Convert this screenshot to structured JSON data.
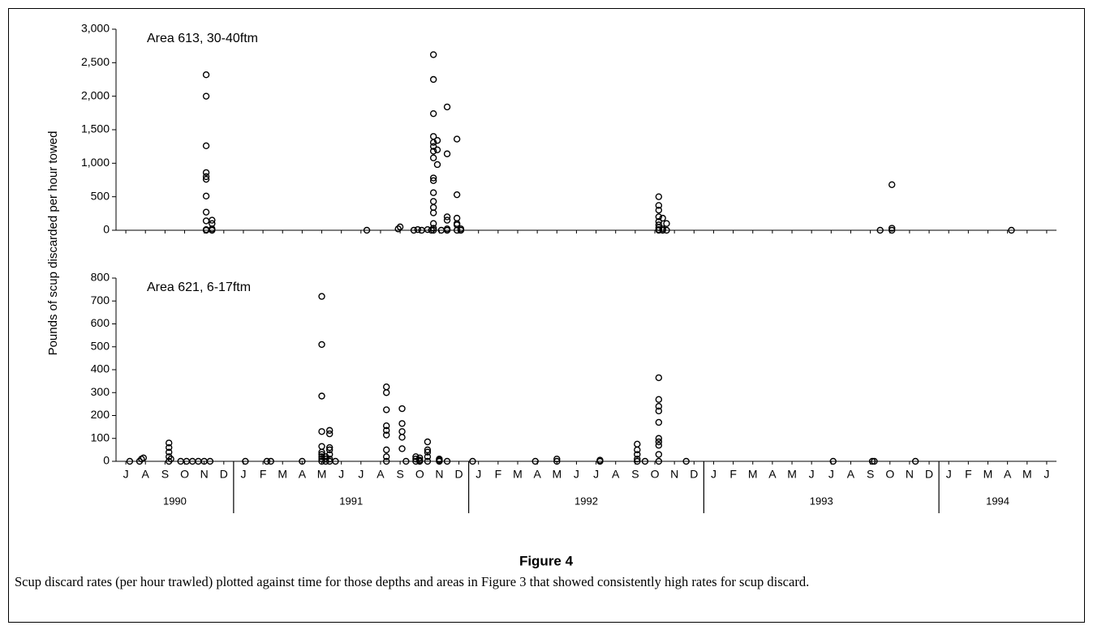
{
  "y_label": "Pounds of scup discarded per hour towed",
  "chart_data": [
    {
      "type": "scatter",
      "annotation": "Area 613, 30-40ftm",
      "xlim": [
        0,
        48
      ],
      "ylim": [
        0,
        3000
      ],
      "yticks": [
        0,
        500,
        {
          "value": 1000,
          "label": "1,000"
        },
        {
          "value": 1500,
          "label": "1,500"
        },
        {
          "value": 2000,
          "label": "2,000"
        },
        {
          "value": 2500,
          "label": "2,500"
        },
        {
          "value": 3000,
          "label": "3,000"
        }
      ],
      "series": [
        {
          "color": "#000000",
          "x": [
            4.6,
            4.6,
            4.6,
            4.6,
            4.6,
            4.6,
            4.6,
            4.6,
            4.6,
            4.6,
            4.6,
            4.9,
            4.9,
            4.9,
            4.9,
            12.8,
            14.4,
            14.5,
            15.2,
            15.4,
            15.6,
            15.9,
            16.1,
            16.2,
            16.2,
            16.2,
            16.2,
            16.2,
            16.2,
            16.2,
            16.2,
            16.2,
            16.2,
            16.2,
            16.2,
            16.2,
            16.2,
            16.2,
            16.2,
            16.2,
            16.4,
            16.4,
            16.4,
            16.6,
            16.9,
            16.9,
            16.9,
            16.9,
            16.9,
            16.9,
            17.4,
            17.4,
            17.4,
            17.4,
            17.4,
            17.4,
            17.6,
            17.6,
            27.7,
            27.7,
            27.7,
            27.7,
            27.7,
            27.7,
            27.7,
            27.7,
            27.7,
            27.9,
            27.9,
            27.9,
            28.1,
            28.1,
            39.0,
            39.6,
            39.6,
            39.6,
            45.7
          ],
          "values": [
            2320,
            2000,
            1260,
            860,
            800,
            760,
            510,
            270,
            140,
            10,
            0,
            150,
            100,
            20,
            0,
            0,
            20,
            50,
            0,
            10,
            0,
            10,
            0,
            2620,
            2250,
            1740,
            1400,
            1310,
            1250,
            1180,
            1080,
            780,
            740,
            560,
            430,
            340,
            260,
            100,
            30,
            0,
            1340,
            1200,
            980,
            0,
            1840,
            1140,
            200,
            150,
            20,
            0,
            1360,
            530,
            180,
            100,
            80,
            0,
            20,
            0,
            500,
            370,
            300,
            200,
            130,
            80,
            40,
            10,
            0,
            180,
            20,
            0,
            100,
            0,
            0,
            680,
            30,
            0,
            0
          ]
        }
      ]
    },
    {
      "type": "scatter",
      "annotation": "Area 621, 6-17ftm",
      "xlim": [
        0,
        48
      ],
      "ylim": [
        0,
        800
      ],
      "yticks": [
        0,
        100,
        200,
        300,
        400,
        500,
        600,
        700,
        800
      ],
      "xticks": [
        {
          "value": 0.5,
          "label": "J"
        },
        {
          "value": 1.5,
          "label": "A"
        },
        {
          "value": 2.5,
          "label": "S"
        },
        {
          "value": 3.5,
          "label": "O"
        },
        {
          "value": 4.5,
          "label": "N"
        },
        {
          "value": 5.5,
          "label": "D"
        },
        {
          "value": 6.5,
          "label": "J"
        },
        {
          "value": 7.5,
          "label": "F"
        },
        {
          "value": 8.5,
          "label": "M"
        },
        {
          "value": 9.5,
          "label": "A"
        },
        {
          "value": 10.5,
          "label": "M"
        },
        {
          "value": 11.5,
          "label": "J"
        },
        {
          "value": 12.5,
          "label": "J"
        },
        {
          "value": 13.5,
          "label": "A"
        },
        {
          "value": 14.5,
          "label": "S"
        },
        {
          "value": 15.5,
          "label": "O"
        },
        {
          "value": 16.5,
          "label": "N"
        },
        {
          "value": 17.5,
          "label": "D"
        },
        {
          "value": 18.5,
          "label": "J"
        },
        {
          "value": 19.5,
          "label": "F"
        },
        {
          "value": 20.5,
          "label": "M"
        },
        {
          "value": 21.5,
          "label": "A"
        },
        {
          "value": 22.5,
          "label": "M"
        },
        {
          "value": 23.5,
          "label": "J"
        },
        {
          "value": 24.5,
          "label": "J"
        },
        {
          "value": 25.5,
          "label": "A"
        },
        {
          "value": 26.5,
          "label": "S"
        },
        {
          "value": 27.5,
          "label": "O"
        },
        {
          "value": 28.5,
          "label": "N"
        },
        {
          "value": 29.5,
          "label": "D"
        },
        {
          "value": 30.5,
          "label": "J"
        },
        {
          "value": 31.5,
          "label": "F"
        },
        {
          "value": 32.5,
          "label": "M"
        },
        {
          "value": 33.5,
          "label": "A"
        },
        {
          "value": 34.5,
          "label": "M"
        },
        {
          "value": 35.5,
          "label": "J"
        },
        {
          "value": 36.5,
          "label": "J"
        },
        {
          "value": 37.5,
          "label": "A"
        },
        {
          "value": 38.5,
          "label": "S"
        },
        {
          "value": 39.5,
          "label": "O"
        },
        {
          "value": 40.5,
          "label": "N"
        },
        {
          "value": 41.5,
          "label": "D"
        },
        {
          "value": 42.5,
          "label": "J"
        },
        {
          "value": 43.5,
          "label": "F"
        },
        {
          "value": 44.5,
          "label": "M"
        },
        {
          "value": 45.5,
          "label": "A"
        },
        {
          "value": 46.5,
          "label": "M"
        },
        {
          "value": 47.5,
          "label": "J"
        }
      ],
      "year_ticks": [
        {
          "value": 3,
          "label": "1990"
        },
        {
          "value": 12,
          "label": "1991"
        },
        {
          "value": 24,
          "label": "1992"
        },
        {
          "value": 36,
          "label": "1993"
        },
        {
          "value": 45,
          "label": "1994"
        }
      ],
      "series": [
        {
          "color": "#000000",
          "x": [
            0.7,
            1.2,
            1.3,
            1.4,
            2.7,
            2.7,
            2.7,
            2.7,
            2.7,
            2.8,
            3.3,
            3.6,
            3.9,
            4.2,
            4.5,
            4.8,
            6.6,
            7.7,
            7.9,
            9.5,
            10.5,
            10.5,
            10.5,
            10.5,
            10.5,
            10.5,
            10.5,
            10.5,
            10.5,
            10.5,
            10.7,
            10.7,
            10.7,
            10.9,
            10.9,
            10.9,
            10.9,
            10.9,
            10.9,
            10.9,
            11.2,
            13.8,
            13.8,
            13.8,
            13.8,
            13.8,
            13.8,
            13.8,
            13.8,
            13.8,
            14.6,
            14.6,
            14.6,
            14.6,
            14.6,
            14.8,
            15.3,
            15.3,
            15.3,
            15.5,
            15.5,
            15.5,
            15.9,
            15.9,
            15.9,
            15.9,
            15.9,
            16.5,
            16.5,
            16.5,
            16.9,
            18.2,
            21.4,
            22.5,
            22.5,
            24.7,
            24.7,
            26.6,
            26.6,
            26.6,
            26.6,
            26.6,
            27.0,
            27.7,
            27.7,
            27.7,
            27.7,
            27.7,
            27.7,
            27.7,
            27.7,
            27.7,
            27.7,
            29.1,
            36.6,
            38.6,
            38.7,
            40.8
          ],
          "values": [
            0,
            0,
            10,
            15,
            80,
            60,
            40,
            20,
            0,
            10,
            0,
            0,
            0,
            0,
            0,
            0,
            0,
            0,
            0,
            0,
            720,
            510,
            285,
            130,
            65,
            40,
            30,
            20,
            10,
            0,
            20,
            10,
            0,
            135,
            120,
            60,
            50,
            30,
            10,
            0,
            0,
            325,
            300,
            225,
            155,
            135,
            115,
            50,
            20,
            0,
            230,
            165,
            130,
            105,
            55,
            0,
            20,
            10,
            0,
            15,
            5,
            0,
            85,
            50,
            40,
            20,
            0,
            10,
            5,
            0,
            0,
            0,
            0,
            10,
            0,
            5,
            0,
            75,
            50,
            30,
            10,
            0,
            0,
            365,
            270,
            240,
            220,
            170,
            100,
            85,
            70,
            30,
            0,
            0,
            0,
            0,
            0,
            0
          ]
        }
      ]
    }
  ],
  "figure_title": "Figure 4",
  "caption": "Scup discard rates (per hour trawled) plotted against time for those depths and areas in Figure 3 that showed consistently high rates for scup discard."
}
